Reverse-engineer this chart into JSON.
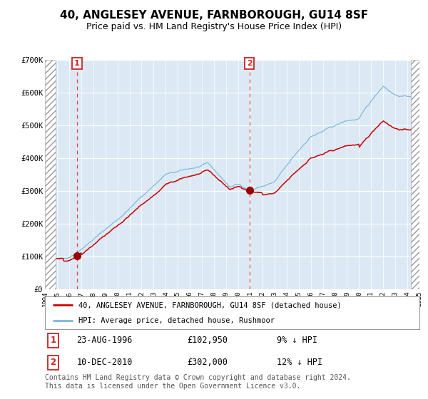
{
  "title": "40, ANGLESEY AVENUE, FARNBOROUGH, GU14 8SF",
  "subtitle": "Price paid vs. HM Land Registry's House Price Index (HPI)",
  "legend_line1": "40, ANGLESEY AVENUE, FARNBOROUGH, GU14 8SF (detached house)",
  "legend_line2": "HPI: Average price, detached house, Rushmoor",
  "sale1_date": "23-AUG-1996",
  "sale1_price": 102950,
  "sale1_label": "9% ↓ HPI",
  "sale2_date": "10-DEC-2010",
  "sale2_price": 302000,
  "sale2_label": "12% ↓ HPI",
  "footnote": "Contains HM Land Registry data © Crown copyright and database right 2024.\nThis data is licensed under the Open Government Licence v3.0.",
  "hpi_color": "#7ab8d9",
  "price_color": "#cc0000",
  "bg_color": "#dce9f5",
  "plot_bg": "#dce9f5",
  "marker_color": "#990000",
  "vline1_color": "#dd4444",
  "vline2_color": "#cc6666",
  "ylim": [
    0,
    700000
  ],
  "yticks": [
    0,
    100000,
    200000,
    300000,
    400000,
    500000,
    600000,
    700000
  ],
  "ytick_labels": [
    "£0",
    "£100K",
    "£200K",
    "£300K",
    "£400K",
    "£500K",
    "£600K",
    "£700K"
  ],
  "x_start_year": 1994,
  "x_end_year": 2025,
  "sale1_x": 1996.65,
  "sale2_x": 2010.92,
  "title_fontsize": 11,
  "subtitle_fontsize": 9,
  "axis_fontsize": 7.5,
  "legend_fontsize": 8,
  "footnote_fontsize": 7
}
